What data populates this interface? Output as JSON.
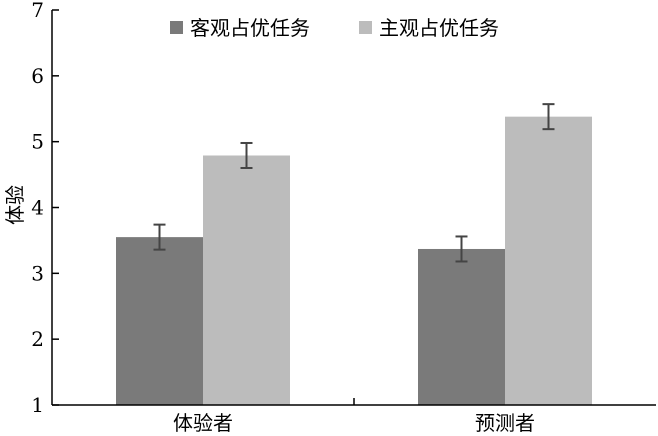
{
  "chart_data": {
    "type": "bar",
    "title": "",
    "xlabel": "",
    "ylabel": "体验",
    "ylim": [
      1,
      7
    ],
    "yticks": [
      1,
      2,
      3,
      4,
      5,
      6,
      7
    ],
    "grid": false,
    "legend_position": "top-center",
    "categories": [
      "体验者",
      "预测者"
    ],
    "series": [
      {
        "name": "客观占优任务",
        "color": "#7a7a7a",
        "values": [
          3.55,
          3.37
        ],
        "error": [
          0.19,
          0.19
        ]
      },
      {
        "name": "主观占优任务",
        "color": "#bcbcbc",
        "values": [
          4.79,
          5.38
        ],
        "error": [
          0.19,
          0.19
        ]
      }
    ]
  }
}
